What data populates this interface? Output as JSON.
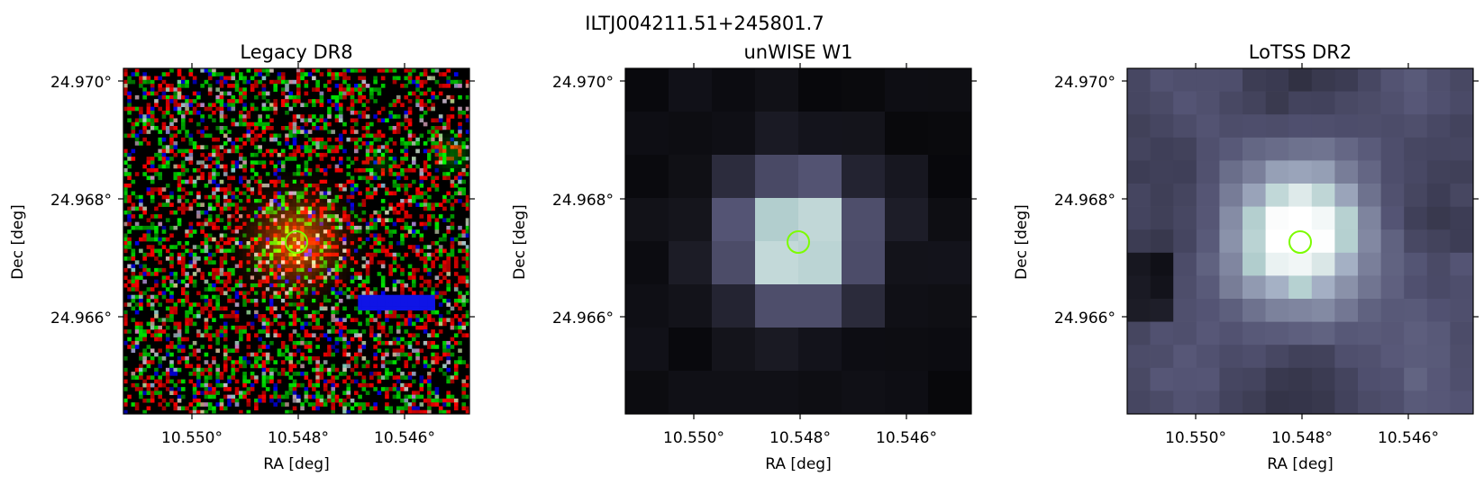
{
  "suptitle": "ILTJ004211.51+245801.7",
  "chart_data": [
    {
      "type": "heatmap",
      "title": "Legacy DR8",
      "xlabel": "RA [deg]",
      "ylabel": "Dec [deg]",
      "xticks": [
        "10.550°",
        "10.548°",
        "10.546°"
      ],
      "yticks": [
        "24.970°",
        "24.968°",
        "24.966°"
      ],
      "colormap": "rgb",
      "image_cells": 90
    },
    {
      "type": "heatmap",
      "title": "unWISE W1",
      "xlabel": "RA [deg]",
      "ylabel": "Dec [deg]",
      "xticks": [
        "10.550°",
        "10.548°",
        "10.546°"
      ],
      "yticks": [
        "24.970°",
        "24.968°",
        "24.966°"
      ],
      "colormap": "bone",
      "image_cells": 8
    },
    {
      "type": "heatmap",
      "title": "LoTSS DR2",
      "xlabel": "RA [deg]",
      "ylabel": "Dec [deg]",
      "xticks": [
        "10.550°",
        "10.548°",
        "10.546°"
      ],
      "yticks": [
        "24.970°",
        "24.968°",
        "24.966°"
      ],
      "colormap": "bone",
      "image_cells": 15
    }
  ],
  "marker_color": "#7CFC00"
}
